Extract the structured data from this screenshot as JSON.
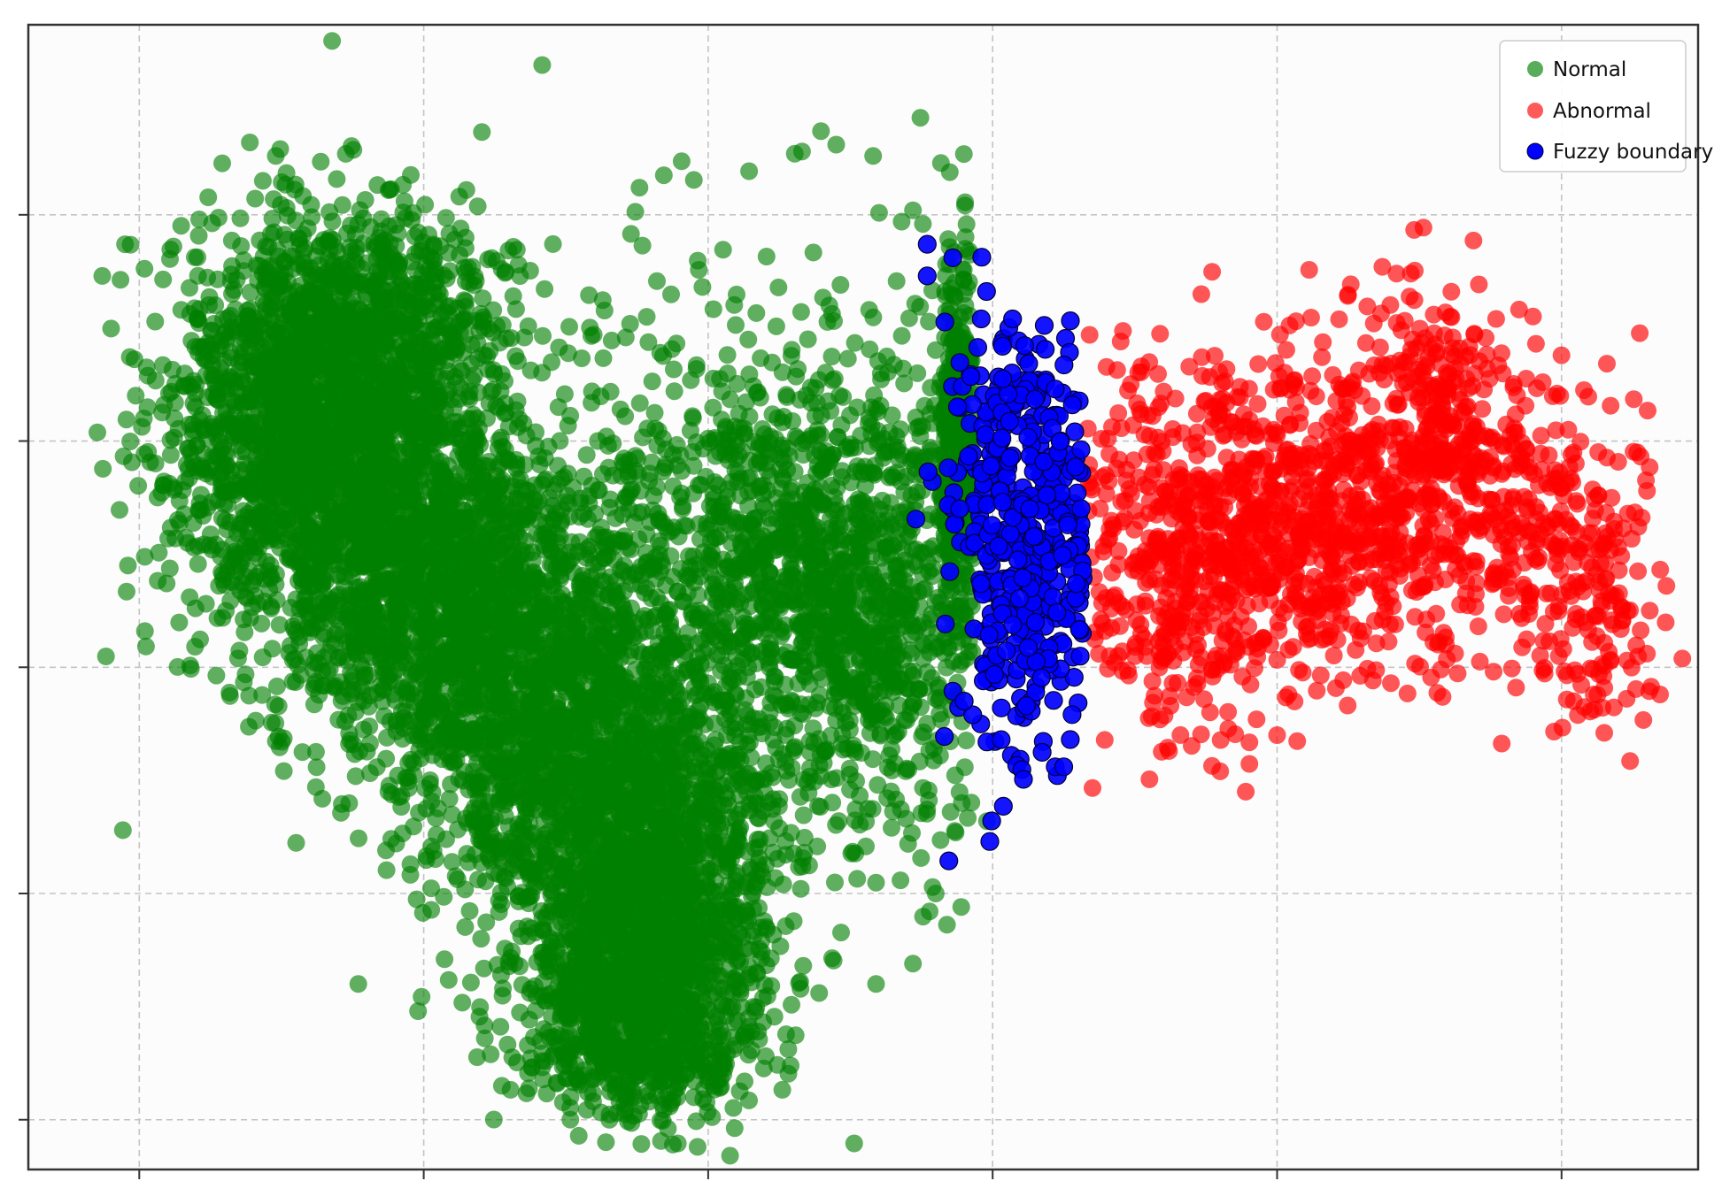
{
  "chart_data": {
    "type": "scatter",
    "title": "",
    "xlabel": "",
    "ylabel": "",
    "xlim": [
      -0.39,
      5.48
    ],
    "ylim": [
      -0.22,
      4.84
    ],
    "xticks": [
      0,
      1,
      2,
      3,
      4,
      5
    ],
    "yticks": [
      0,
      1,
      2,
      3,
      4
    ],
    "tick_labels_visible": false,
    "grid": true,
    "legend_position": "top-right",
    "colors": {
      "Normal": "#008000",
      "Abnormal": "#ff0000",
      "Fuzzy boundary": "#0000ff"
    },
    "series": [
      {
        "name": "Normal",
        "color": "#008000",
        "clusters": [
          {
            "cx": 0.55,
            "cy": 3.05,
            "sx": 0.24,
            "sy": 0.42,
            "n": 1300
          },
          {
            "cx": 1.0,
            "cy": 2.4,
            "sx": 0.27,
            "sy": 0.4,
            "n": 1500
          },
          {
            "cx": 1.5,
            "cy": 1.75,
            "sx": 0.27,
            "sy": 0.42,
            "n": 1500
          },
          {
            "cx": 1.82,
            "cy": 1.0,
            "sx": 0.22,
            "sy": 0.42,
            "n": 1300
          },
          {
            "cx": 1.72,
            "cy": 0.45,
            "sx": 0.2,
            "sy": 0.22,
            "n": 700
          },
          {
            "cx": 0.8,
            "cy": 3.45,
            "sx": 0.25,
            "sy": 0.28,
            "n": 800
          },
          {
            "cx": 2.3,
            "cy": 2.5,
            "sx": 0.3,
            "sy": 0.45,
            "n": 1000
          },
          {
            "cx": 2.55,
            "cy": 2.0,
            "sx": 0.18,
            "sy": 0.45,
            "n": 400
          },
          {
            "cx": 2.95,
            "cy": 3.0,
            "sx": 0.12,
            "sy": 0.42,
            "n": 350
          },
          {
            "cx": 1.6,
            "cy": 2.7,
            "sx": 0.6,
            "sy": 0.8,
            "n": 280
          }
        ],
        "points": [
          [
            -0.13,
            3.73
          ],
          [
            -0.05,
            3.87
          ],
          [
            0.12,
            3.86
          ],
          [
            0.48,
            4.26
          ],
          [
            1.15,
            4.11
          ],
          [
            2.33,
            4.28
          ],
          [
            2.45,
            4.31
          ],
          [
            2.58,
            4.26
          ],
          [
            2.68,
            3.97
          ],
          [
            2.72,
            4.02
          ],
          [
            -0.04,
            2.45
          ],
          [
            0.02,
            2.16
          ],
          [
            2.87,
            1.27
          ],
          [
            2.98,
            1.32
          ],
          [
            2.8,
            1.0
          ],
          [
            2.72,
            0.69
          ],
          [
            0.98,
            0.48
          ],
          [
            0.77,
            0.6
          ],
          [
            2.39,
            0.56
          ],
          [
            2.59,
            0.6
          ],
          [
            1.95,
            0.1
          ],
          [
            1.68,
            0.03
          ],
          [
            1.38,
            0.23
          ],
          [
            1.5,
            0.88
          ],
          [
            2.17,
            0.65
          ]
        ]
      },
      {
        "name": "Abnormal",
        "color": "#ff0000",
        "clusters": [
          {
            "cx": 3.63,
            "cy": 2.48,
            "sx": 0.18,
            "sy": 0.42,
            "n": 320
          },
          {
            "cx": 3.85,
            "cy": 2.55,
            "sx": 0.18,
            "sy": 0.38,
            "n": 260
          },
          {
            "cx": 4.1,
            "cy": 2.7,
            "sx": 0.2,
            "sy": 0.35,
            "n": 300
          },
          {
            "cx": 4.4,
            "cy": 2.75,
            "sx": 0.2,
            "sy": 0.38,
            "n": 300
          },
          {
            "cx": 4.55,
            "cy": 3.15,
            "sx": 0.1,
            "sy": 0.28,
            "n": 160
          },
          {
            "cx": 4.85,
            "cy": 2.65,
            "sx": 0.18,
            "sy": 0.35,
            "n": 260
          },
          {
            "cx": 5.12,
            "cy": 2.3,
            "sx": 0.12,
            "sy": 0.32,
            "n": 120
          }
        ],
        "points": [
          [
            4.37,
            3.77
          ],
          [
            4.42,
            3.74
          ],
          [
            4.47,
            3.74
          ],
          [
            4.34,
            3.52
          ],
          [
            4.77,
            3.54
          ],
          [
            4.91,
            3.43
          ],
          [
            3.45,
            3.44
          ],
          [
            3.62,
            1.63
          ],
          [
            3.89,
            1.45
          ],
          [
            3.8,
            1.54
          ],
          [
            5.23,
            2.03
          ],
          [
            5.3,
            2.06
          ],
          [
            5.31,
            2.25
          ],
          [
            5.15,
            1.71
          ],
          [
            4.84,
            1.91
          ],
          [
            4.0,
            1.7
          ],
          [
            4.4,
            1.93
          ]
        ]
      },
      {
        "name": "Fuzzy boundary",
        "color": "#0000ff",
        "clusters": [
          {
            "cx": 3.05,
            "cy": 2.7,
            "sx": 0.11,
            "sy": 0.38,
            "n": 170
          },
          {
            "cx": 3.2,
            "cy": 2.5,
            "sx": 0.1,
            "sy": 0.4,
            "n": 160
          },
          {
            "cx": 3.1,
            "cy": 3.1,
            "sx": 0.1,
            "sy": 0.22,
            "n": 60
          },
          {
            "cx": 3.08,
            "cy": 2.05,
            "sx": 0.08,
            "sy": 0.25,
            "n": 50
          }
        ],
        "points": [
          [
            2.77,
            3.87
          ],
          [
            2.77,
            3.73
          ],
          [
            2.86,
            3.81
          ],
          [
            2.96,
            3.54
          ],
          [
            3.07,
            3.54
          ],
          [
            2.99,
            1.23
          ],
          [
            3.22,
            1.56
          ],
          [
            3.25,
            1.56
          ],
          [
            2.98,
            1.67
          ],
          [
            3.03,
            1.68
          ],
          [
            2.93,
            1.79
          ],
          [
            2.9,
            1.85
          ],
          [
            3.22,
            3.23
          ],
          [
            3.28,
            3.16
          ]
        ]
      }
    ]
  }
}
